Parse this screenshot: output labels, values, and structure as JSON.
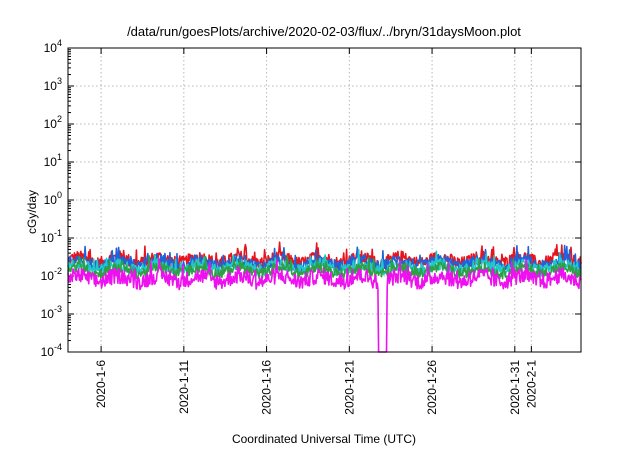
{
  "chart_data": {
    "type": "line",
    "title": "/data/run/goesPlots/archive/2020-02-03/flux/../bryn/31daysMoon.plot",
    "xlabel": "Coordinated Universal Time (UTC)",
    "ylabel": "cGy/day",
    "y_scale": "log",
    "ylim": [
      0.0001,
      10000
    ],
    "y_ticks": [
      {
        "value": 10000,
        "base": "10",
        "exp": "4"
      },
      {
        "value": 1000,
        "base": "10",
        "exp": "3"
      },
      {
        "value": 100,
        "base": "10",
        "exp": "2"
      },
      {
        "value": 10,
        "base": "10",
        "exp": "1"
      },
      {
        "value": 1,
        "base": "10",
        "exp": "0"
      },
      {
        "value": 0.1,
        "base": "10",
        "exp": "-1"
      },
      {
        "value": 0.01,
        "base": "10",
        "exp": "-2"
      },
      {
        "value": 0.001,
        "base": "10",
        "exp": "-3"
      },
      {
        "value": 0.0001,
        "base": "10",
        "exp": "-4"
      }
    ],
    "xlim": [
      "2020-01-04",
      "2020-02-04"
    ],
    "x_ticks": [
      "2020-1-6",
      "2020-1-11",
      "2020-1-16",
      "2020-1-21",
      "2020-1-26",
      "2020-1-31",
      "2020-2-1"
    ],
    "grid": true,
    "legend": "none",
    "series": [
      {
        "color": "#e8141c",
        "base": 0.026,
        "spread": 0.34,
        "dip": null
      },
      {
        "color": "#1f62d9",
        "base": 0.022,
        "spread": 0.3,
        "dip": null
      },
      {
        "color": "#20c9c9",
        "base": 0.017,
        "spread": 0.3,
        "dip": null
      },
      {
        "color": "#2ea043",
        "base": 0.014,
        "spread": 0.28,
        "dip": null
      },
      {
        "color": "#ee10ee",
        "base": 0.0085,
        "spread": 0.42,
        "dip": {
          "from": "2020-01-22T18:00",
          "to": "2020-01-23T06:00",
          "value": 0.0001
        }
      }
    ]
  }
}
